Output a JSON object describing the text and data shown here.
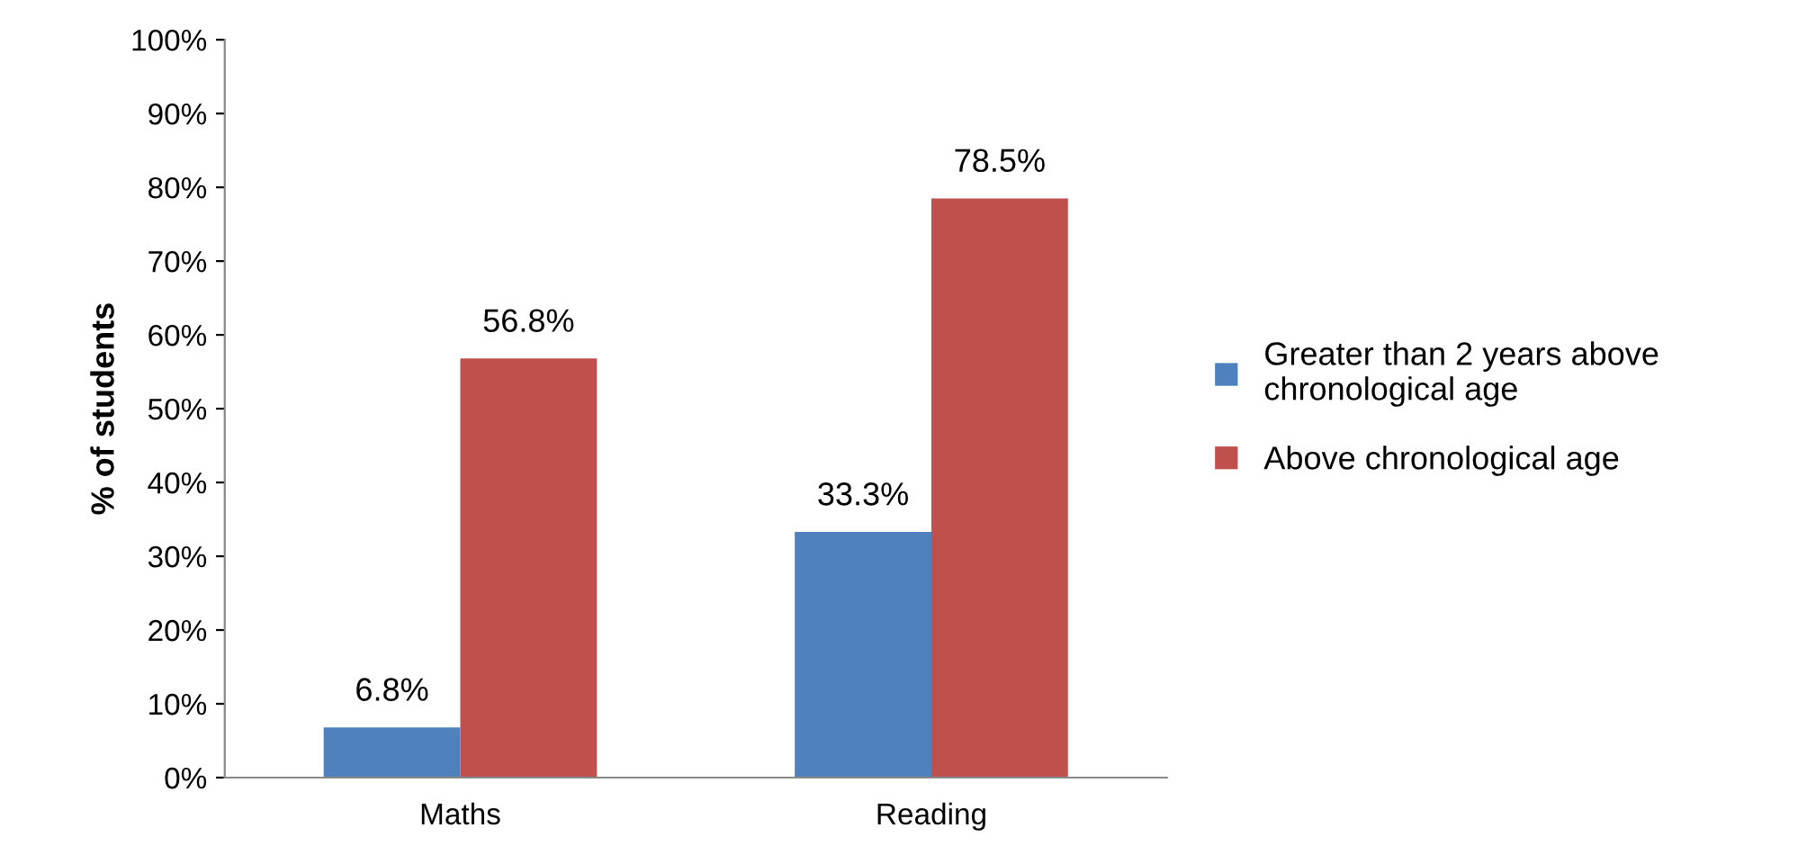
{
  "chart_data": {
    "type": "bar",
    "ylabel": "% of students",
    "categories": [
      "Maths",
      "Reading"
    ],
    "series": [
      {
        "name": "Greater than 2 years above\nchronological age",
        "color": "#4f81bd",
        "values": [
          6.8,
          33.3
        ],
        "value_labels": [
          "6.8%",
          "33.3%"
        ]
      },
      {
        "name": "Above chronological age",
        "color": "#c0504d",
        "values": [
          56.8,
          78.5
        ],
        "value_labels": [
          "56.8%",
          "78.5%"
        ]
      }
    ],
    "ylim": [
      0,
      100
    ],
    "yticks": [
      {
        "value": 0,
        "label": "0%"
      },
      {
        "value": 10,
        "label": "10%"
      },
      {
        "value": 20,
        "label": "20%"
      },
      {
        "value": 30,
        "label": "30%"
      },
      {
        "value": 40,
        "label": "40%"
      },
      {
        "value": 50,
        "label": "50%"
      },
      {
        "value": 60,
        "label": "60%"
      },
      {
        "value": 70,
        "label": "70%"
      },
      {
        "value": 80,
        "label": "80%"
      },
      {
        "value": 90,
        "label": "90%"
      },
      {
        "value": 100,
        "label": "100%"
      }
    ],
    "grid": false,
    "legend": "right"
  }
}
